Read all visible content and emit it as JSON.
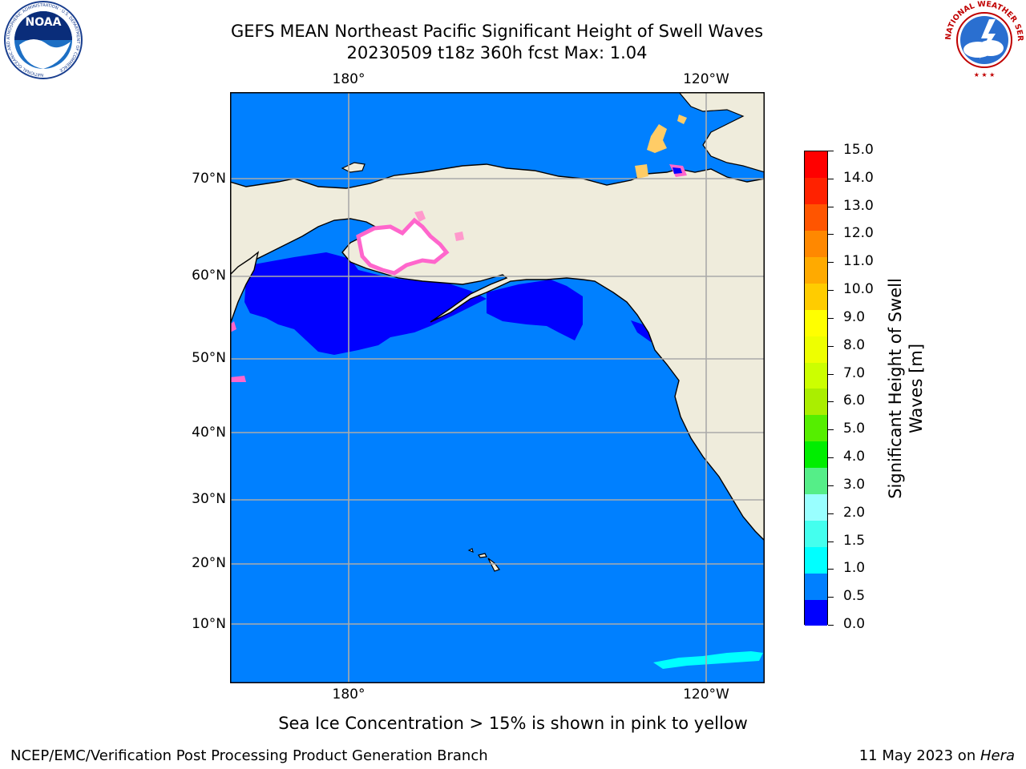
{
  "header": {
    "title_line1": "GEFS MEAN Northeast Pacific Significant Height of Swell Waves",
    "title_line2": "20230509 t18z 360h fcst   Max: 1.04"
  },
  "logos": {
    "left": "NOAA",
    "left_ring_text": "NATIONAL OCEANIC AND ATMOSPHERIC ADMINISTRATION · U.S. DEPARTMENT OF COMMERCE",
    "right_ring_text": "NATIONAL WEATHER SERVICE"
  },
  "map": {
    "lon_labels": [
      "180°",
      "120°W"
    ],
    "lat_labels": [
      "70°N",
      "60°N",
      "50°N",
      "40°N",
      "30°N",
      "20°N",
      "10°N"
    ],
    "colors": {
      "land": "#efecdc",
      "ocean_default": "#0080ff",
      "ocean_low": "#0000ff",
      "ice": "#ff66cc",
      "ice_high": "#ffe066",
      "grid": "#aaaaaa"
    }
  },
  "colorbar": {
    "levels": [
      "0.0",
      "0.5",
      "1.0",
      "1.5",
      "2.0",
      "3.0",
      "4.0",
      "5.0",
      "6.0",
      "7.0",
      "8.0",
      "9.0",
      "10.0",
      "11.0",
      "12.0",
      "13.0",
      "14.0",
      "15.0"
    ],
    "colors": [
      "#0000ff",
      "#0080ff",
      "#00ffff",
      "#44ffee",
      "#99ffff",
      "#55ee88",
      "#00ee00",
      "#55ee00",
      "#aaee00",
      "#ccff00",
      "#eeff00",
      "#ffff00",
      "#ffcc00",
      "#ffaa00",
      "#ff8800",
      "#ff5500",
      "#ff2200",
      "#ff0000"
    ],
    "label_line1": "Significant Height of Swell",
    "label_line2": "Waves [m]"
  },
  "notes": {
    "ice_note": "Sea Ice Concentration > 15% is shown in pink to yellow"
  },
  "footer": {
    "left": "NCEP/EMC/Verification Post Processing Product Generation Branch",
    "right_date": "11 May 2023 on ",
    "right_host": "Hera"
  }
}
